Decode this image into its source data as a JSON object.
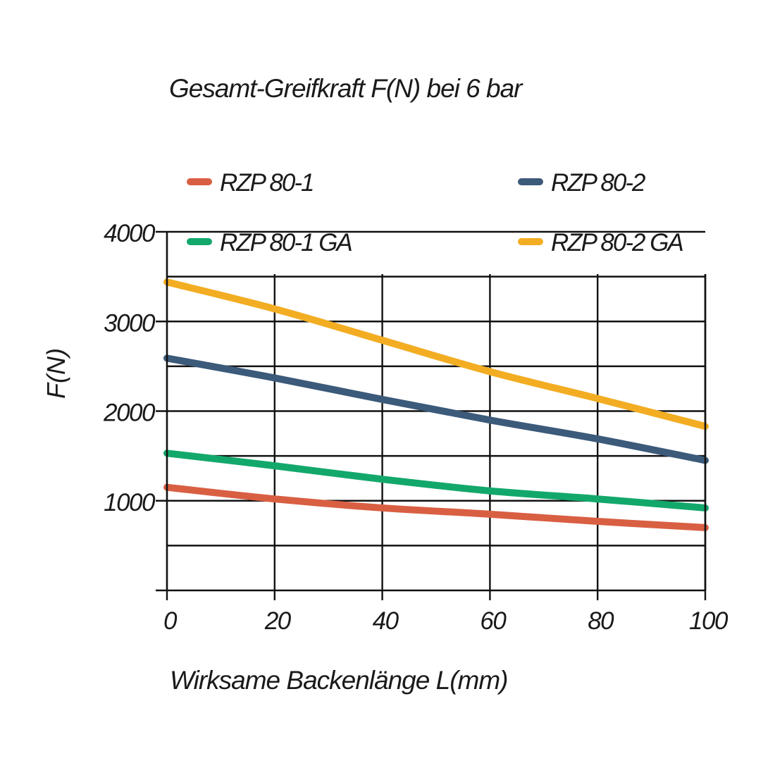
{
  "chart_data": {
    "type": "line",
    "title": "Gesamt-Greifkraft F(N) bei 6 bar",
    "xlabel": "Wirksame Backenlänge L(mm)",
    "ylabel": "F(N)",
    "xlim": [
      0,
      100
    ],
    "ylim": [
      0,
      4000
    ],
    "x_ticks": [
      "0",
      "20",
      "40",
      "60",
      "80",
      "100"
    ],
    "y_ticks": [
      "1000",
      "2000",
      "3000",
      "4000"
    ],
    "grid": true,
    "legend_position": "top",
    "series": [
      {
        "name": "RZP 80-1",
        "color": "#d95f43",
        "x": [
          0,
          20,
          40,
          60,
          80,
          100
        ],
        "values": [
          1150,
          1020,
          920,
          850,
          770,
          700
        ]
      },
      {
        "name": "RZP 80-2",
        "color": "#3c5a7a",
        "x": [
          0,
          20,
          40,
          60,
          80,
          100
        ],
        "values": [
          2590,
          2370,
          2130,
          1900,
          1690,
          1450
        ]
      },
      {
        "name": "RZP 80-1 GA",
        "color": "#13a86b",
        "x": [
          0,
          20,
          40,
          60,
          80,
          100
        ],
        "values": [
          1530,
          1390,
          1240,
          1110,
          1020,
          920
        ]
      },
      {
        "name": "RZP 80-2 GA",
        "color": "#f3ad23",
        "x": [
          0,
          20,
          40,
          60,
          80,
          100
        ],
        "values": [
          3440,
          3140,
          2790,
          2440,
          2140,
          1830
        ]
      }
    ]
  }
}
